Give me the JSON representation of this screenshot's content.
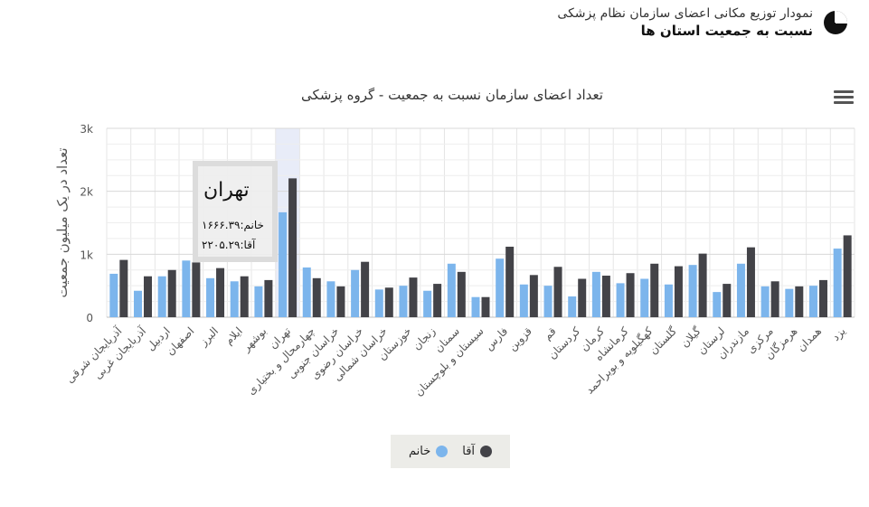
{
  "header": {
    "title": "نمودار توزیع مکانی اعضای سازمان نظام پزشکی",
    "subtitle": "نسبت به جمعیت استان ها",
    "icon": "pie-chart-icon"
  },
  "menu": {
    "icon": "hamburger-menu-icon"
  },
  "chart_data": {
    "type": "bar",
    "title": "تعداد اعضای سازمان نسبت به جمعیت - گروه پزشکی",
    "ylabel": "تعداد در یک میلیون جمعیت",
    "xlabel": "",
    "ylim": [
      0,
      3000
    ],
    "yticks": [
      0,
      1000,
      2000,
      3000
    ],
    "ytick_labels": [
      "0",
      "1k",
      "2k",
      "3k"
    ],
    "grid": true,
    "legend_position": "bottom-center",
    "categories": [
      "آذربایجان شرقی",
      "آذربایجان غربی",
      "اردبیل",
      "اصفهان",
      "البرز",
      "ایلام",
      "بوشهر",
      "تهران",
      "چهارمحال و بختیاری",
      "خراسان جنوبی",
      "خراسان رضوی",
      "خراسان شمالی",
      "خوزستان",
      "زنجان",
      "سمنان",
      "سیستان و بلوچستان",
      "فارس",
      "قزوین",
      "قم",
      "کردستان",
      "کرمان",
      "کرمانشاه",
      "کهگیلویه و بویراحمد",
      "گلستان",
      "گیلان",
      "لرستان",
      "مازندران",
      "مرکزی",
      "هرمزگان",
      "همدان",
      "یزد"
    ],
    "series": [
      {
        "name": "خانم",
        "color": "#7cb5ec",
        "values": [
          690,
          420,
          650,
          900,
          620,
          570,
          490,
          1666.39,
          790,
          570,
          750,
          440,
          500,
          420,
          850,
          320,
          930,
          520,
          500,
          330,
          720,
          540,
          610,
          520,
          830,
          400,
          850,
          490,
          450,
          500,
          1090
        ]
      },
      {
        "name": "آقا",
        "color": "#434348",
        "values": [
          910,
          650,
          750,
          870,
          780,
          650,
          590,
          2205.29,
          620,
          490,
          880,
          470,
          630,
          530,
          720,
          320,
          1120,
          670,
          800,
          610,
          660,
          700,
          850,
          810,
          1010,
          530,
          1110,
          570,
          490,
          590,
          1300
        ]
      }
    ]
  },
  "tooltip": {
    "category": "تهران",
    "rows": [
      {
        "label": "خانم",
        "value": "۱۶۶۶.۳۹"
      },
      {
        "label": "آقا",
        "value": "۲۲۰۵.۲۹"
      }
    ]
  }
}
